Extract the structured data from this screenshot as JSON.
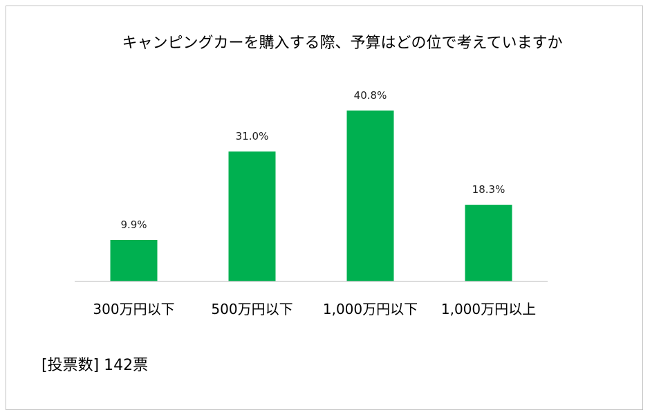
{
  "chart_data": {
    "type": "bar",
    "title": "キャンピングカーを購入する際、予算はどの位で考えていますか",
    "categories": [
      "300万円以下",
      "500万円以下",
      "1,000万円以下",
      "1,000万円以上"
    ],
    "values": [
      9.9,
      31.0,
      40.8,
      18.3
    ],
    "data_labels": [
      "9.9%",
      "31.0%",
      "40.8%",
      "18.3%"
    ],
    "xlabel": "",
    "ylabel": "",
    "ylim": [
      0,
      50
    ],
    "grid": false,
    "legend": "none",
    "bar_color": "#00b050"
  },
  "footer": {
    "vote_count": "[投票数] 142票"
  }
}
